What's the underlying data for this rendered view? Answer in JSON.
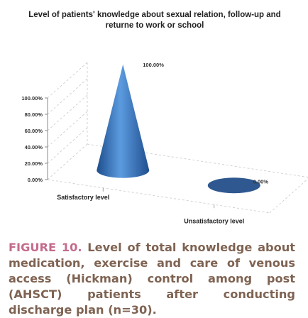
{
  "chart_data": {
    "type": "bar",
    "shape": "3d-cone",
    "title": "Level of patients' knowledge about sexual relation, follow-up and returne to work or school",
    "categories": [
      "Satisfactory level",
      "Unsatisfactory level"
    ],
    "values": [
      100,
      0
    ],
    "data_labels": [
      "100.00%",
      "0.00%"
    ],
    "ytick_labels": [
      "0.00%",
      "20.00%",
      "40.00%",
      "60.00%",
      "80.00%",
      "100.00%"
    ],
    "ylim": [
      0,
      100
    ],
    "grid": true,
    "legend": "none",
    "bar_color": "#3f7fc4"
  },
  "caption": {
    "figure_label": "FIGURE 10.",
    "text": "Level of total knowledge about medication, exercise and care of venous access (Hickman) control among post (AHSCT) patients after conducting discharge plan (n=30)."
  }
}
